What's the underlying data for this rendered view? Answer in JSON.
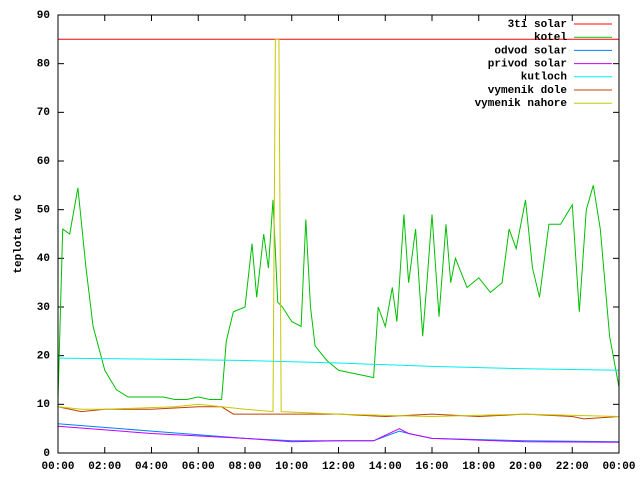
{
  "chart_data": {
    "type": "line",
    "ylabel": "teplota ve C",
    "xlim": [
      0,
      24
    ],
    "ylim": [
      0,
      90
    ],
    "xticks": [
      {
        "value": 0,
        "label": "00:00"
      },
      {
        "value": 2,
        "label": "02:00"
      },
      {
        "value": 4,
        "label": "04:00"
      },
      {
        "value": 6,
        "label": "06:00"
      },
      {
        "value": 8,
        "label": "08:00"
      },
      {
        "value": 10,
        "label": "10:00"
      },
      {
        "value": 12,
        "label": "12:00"
      },
      {
        "value": 14,
        "label": "14:00"
      },
      {
        "value": 16,
        "label": "16:00"
      },
      {
        "value": 18,
        "label": "18:00"
      },
      {
        "value": 20,
        "label": "20:00"
      },
      {
        "value": 22,
        "label": "22:00"
      },
      {
        "value": 24,
        "label": "00:00"
      }
    ],
    "yticks": [
      0,
      10,
      20,
      30,
      40,
      50,
      60,
      70,
      80,
      90
    ],
    "legend": "top-right",
    "series": [
      {
        "name": "3ti solar",
        "color": "#ff0000",
        "x": [
          0,
          24
        ],
        "values": [
          85,
          85
        ]
      },
      {
        "name": "kotel",
        "color": "#00c000",
        "x": [
          0,
          0.2,
          0.5,
          0.85,
          1.2,
          1.5,
          2,
          2.5,
          3,
          3.5,
          4,
          4.5,
          5,
          5.5,
          6,
          6.5,
          7,
          7.2,
          7.5,
          8,
          8.3,
          8.5,
          8.8,
          9,
          9.2,
          9.4,
          9.6,
          10,
          10.4,
          10.6,
          10.8,
          11,
          11.5,
          12,
          12.5,
          13,
          13.5,
          13.7,
          14,
          14.3,
          14.5,
          14.8,
          15,
          15.3,
          15.6,
          15.8,
          16,
          16.3,
          16.6,
          16.8,
          17,
          17.5,
          18,
          18.5,
          19,
          19.3,
          19.6,
          20,
          20.3,
          20.6,
          21,
          21.5,
          22,
          22.3,
          22.6,
          22.9,
          23.2,
          23.6,
          24
        ],
        "values": [
          11,
          46,
          45,
          54.5,
          38,
          26,
          17,
          13,
          11.5,
          11.5,
          11.5,
          11.5,
          11,
          11,
          11.5,
          11,
          11,
          23,
          29,
          30,
          43,
          32,
          45,
          38,
          52,
          31,
          30,
          27,
          26,
          48,
          30,
          22,
          19,
          17,
          16.5,
          16,
          15.5,
          30,
          26,
          34,
          27,
          49,
          35,
          46,
          24,
          36,
          49,
          28,
          47,
          35,
          40,
          34,
          36,
          33,
          35,
          46,
          42,
          52,
          38,
          32,
          47,
          47,
          51,
          29,
          50,
          55,
          46,
          24,
          13.5
        ]
      },
      {
        "name": "odvod solar",
        "color": "#0080ff",
        "x": [
          0,
          4,
          8,
          10,
          12,
          13.5,
          14.6,
          15,
          16,
          20,
          24
        ],
        "values": [
          6,
          4.5,
          3,
          2.5,
          2.5,
          2.5,
          4.5,
          4,
          3,
          2.5,
          2.3
        ]
      },
      {
        "name": "privod solar",
        "color": "#c000ff",
        "x": [
          0,
          4,
          8,
          10,
          12,
          13.5,
          14.6,
          15,
          16,
          20,
          24
        ],
        "values": [
          5.5,
          4,
          3,
          2.3,
          2.5,
          2.5,
          5,
          4,
          3,
          2.3,
          2.2
        ]
      },
      {
        "name": "kutloch",
        "color": "#00eeee",
        "x": [
          0,
          4,
          8,
          12,
          16,
          20,
          24
        ],
        "values": [
          19.5,
          19.3,
          19,
          18.5,
          17.8,
          17.3,
          17
        ]
      },
      {
        "name": "vymenik dole",
        "color": "#c04000",
        "x": [
          0,
          1,
          2,
          4,
          6,
          7,
          7.5,
          8,
          10,
          12,
          14,
          16,
          18,
          20,
          22,
          22.5,
          24
        ],
        "values": [
          9.5,
          8.5,
          9,
          9,
          9.5,
          9.5,
          8,
          8,
          8,
          8,
          7.5,
          8,
          7.5,
          8,
          7.5,
          7,
          7.5
        ]
      },
      {
        "name": "vymenik nahore",
        "color": "#c8c800",
        "x": [
          0,
          1,
          2,
          5,
          6,
          7,
          8,
          9.2,
          9.3,
          9.45,
          9.55,
          12,
          16,
          20,
          24
        ],
        "values": [
          9.5,
          9,
          9,
          9.5,
          10,
          9.5,
          9,
          8.5,
          85,
          85,
          8.5,
          8,
          7.5,
          8,
          7.5
        ]
      }
    ]
  }
}
